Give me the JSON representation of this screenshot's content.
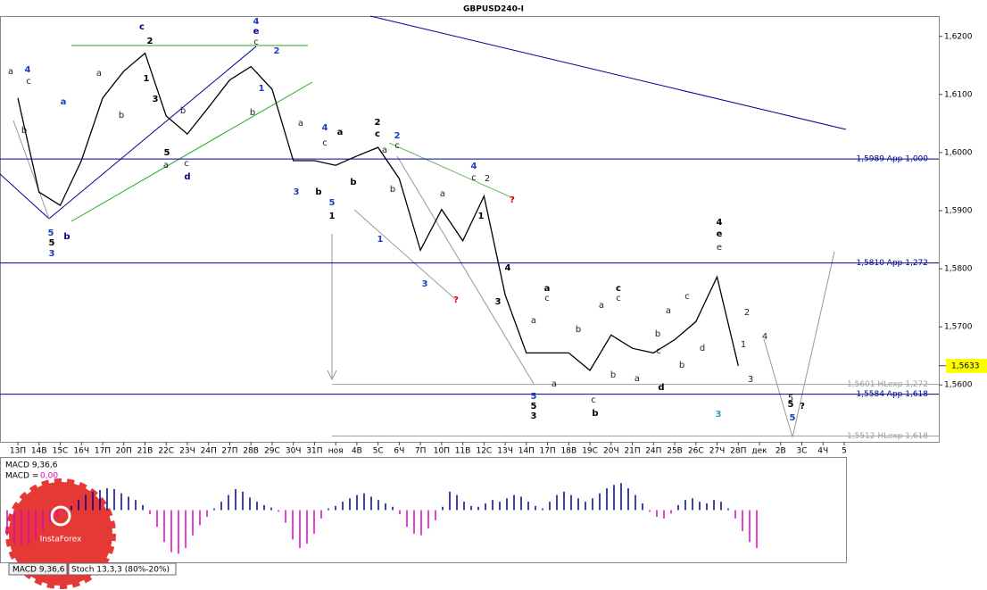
{
  "chart_data": {
    "type": "line",
    "title": "GBPUSD240-I",
    "categories": [
      "13П",
      "14В",
      "15С",
      "16Ч",
      "17П",
      "20П",
      "21В",
      "22С",
      "23Ч",
      "24П",
      "27П",
      "28В",
      "29С",
      "30Ч",
      "31П",
      "ноя",
      "4В",
      "5С",
      "6Ч",
      "7П",
      "10П",
      "11В",
      "12С",
      "13Ч",
      "14П",
      "17П",
      "18В",
      "19С",
      "20Ч",
      "21П",
      "24П",
      "25В",
      "26С",
      "27Ч",
      "28П",
      "дек",
      "2В",
      "3С",
      "4Ч",
      "5"
    ],
    "values": [
      1.6094,
      1.5932,
      1.5909,
      1.5986,
      1.6094,
      1.614,
      1.6171,
      1.6063,
      1.6032,
      1.6078,
      1.6125,
      1.6148,
      1.6109,
      1.5986,
      1.5986,
      1.5978,
      1.5994,
      1.6009,
      1.5955,
      1.5832,
      1.5902,
      1.5848,
      1.5925,
      1.5755,
      1.5655,
      1.5655,
      1.5655,
      1.5625,
      1.5686,
      1.5663,
      1.5655,
      1.5678,
      1.5709,
      1.5786,
      1.5633,
      null,
      null,
      null,
      null,
      null
    ],
    "color": "#000000",
    "ylim": [
      1.5502,
      1.6235
    ],
    "yticks": [
      {
        "value": 1.56,
        "label": "1,5600"
      },
      {
        "value": 1.57,
        "label": "1,5700"
      },
      {
        "value": 1.58,
        "label": "1,5800"
      },
      {
        "value": 1.59,
        "label": "1,5900"
      },
      {
        "value": 1.6,
        "label": "1,6000"
      },
      {
        "value": 1.61,
        "label": "1,6100"
      },
      {
        "value": 1.62,
        "label": "1,6200"
      }
    ],
    "last_price": {
      "value": 1.5633,
      "label": "1,5633"
    },
    "levels": [
      {
        "value": 1.5989,
        "label": "1,5989 App 1,000",
        "color": "#00008b"
      },
      {
        "value": 1.581,
        "label": "1,5810 App 1,272",
        "color": "#00008b"
      },
      {
        "value": 1.5601,
        "label": "1,5601 HLexp 1,272",
        "color": "#a0a0a0"
      },
      {
        "value": 1.5584,
        "label": "1,5584 App 1,618",
        "color": "#00008b"
      },
      {
        "value": 1.5512,
        "label": "1,5512 HLexp 1,618",
        "color": "#a0a0a0"
      }
    ],
    "annotations": [
      {
        "text": "c",
        "color": "#00008b"
      },
      {
        "text": "2",
        "color": "#000000"
      },
      {
        "text": "4",
        "color": "#1f3fbf"
      },
      {
        "text": "e",
        "color": "#00008b"
      },
      {
        "text": "c",
        "color": "#222222"
      },
      {
        "text": "2",
        "color": "#1f3fbf"
      },
      {
        "text": "1",
        "color": "#1f3fbf"
      },
      {
        "text": "b",
        "color": "#222222"
      },
      {
        "text": "a",
        "color": "#222222"
      },
      {
        "text": "4",
        "color": "#1f3fbf"
      },
      {
        "text": "c",
        "color": "#222222"
      },
      {
        "text": "a",
        "color": "#1f3fbf"
      },
      {
        "text": "b",
        "color": "#222222"
      },
      {
        "text": "5",
        "color": "#1f3fbf"
      },
      {
        "text": "5",
        "color": "#000000"
      },
      {
        "text": "3",
        "color": "#1f3fbf"
      },
      {
        "text": "b",
        "color": "#00008b"
      },
      {
        "text": "a",
        "color": "#222222"
      },
      {
        "text": "b",
        "color": "#222222"
      },
      {
        "text": "1",
        "color": "#000000"
      },
      {
        "text": "3",
        "color": "#000000"
      },
      {
        "text": "b",
        "color": "#222222"
      },
      {
        "text": "5",
        "color": "#000000"
      },
      {
        "text": "a",
        "color": "#222222"
      },
      {
        "text": "c",
        "color": "#222222"
      },
      {
        "text": "d",
        "color": "#00008b"
      },
      {
        "text": "a",
        "color": "#222222"
      },
      {
        "text": "4",
        "color": "#1f3fbf"
      },
      {
        "text": "c",
        "color": "#222222"
      },
      {
        "text": "3",
        "color": "#1f3fbf"
      },
      {
        "text": "b",
        "color": "#000000"
      },
      {
        "text": "5",
        "color": "#1f3fbf"
      },
      {
        "text": "1",
        "color": "#000000"
      },
      {
        "text": "a",
        "color": "#000000"
      },
      {
        "text": "b",
        "color": "#000000"
      },
      {
        "text": "2",
        "color": "#000000"
      },
      {
        "text": "c",
        "color": "#000000"
      },
      {
        "text": "a",
        "color": "#222222"
      },
      {
        "text": "2",
        "color": "#1f3fbf"
      },
      {
        "text": "c",
        "color": "#222222"
      },
      {
        "text": "b",
        "color": "#222222"
      },
      {
        "text": "1",
        "color": "#1f3fbf"
      },
      {
        "text": "3",
        "color": "#1f3fbf"
      },
      {
        "text": "?",
        "color": "#e00000"
      },
      {
        "text": "a",
        "color": "#222222"
      },
      {
        "text": "4",
        "color": "#1f3fbf"
      },
      {
        "text": "c",
        "color": "#222222"
      },
      {
        "text": "2",
        "color": "#222222"
      },
      {
        "text": "1",
        "color": "#000000"
      },
      {
        "text": "?",
        "color": "#e00000"
      },
      {
        "text": "4",
        "color": "#000000"
      },
      {
        "text": "3",
        "color": "#000000"
      },
      {
        "text": "a",
        "color": "#222222"
      },
      {
        "text": "5",
        "color": "#1f3fbf"
      },
      {
        "text": "5",
        "color": "#000000"
      },
      {
        "text": "3",
        "color": "#000000"
      },
      {
        "text": "a",
        "color": "#000000"
      },
      {
        "text": "c",
        "color": "#222222"
      },
      {
        "text": "a",
        "color": "#222222"
      },
      {
        "text": "b",
        "color": "#222222"
      },
      {
        "text": "c",
        "color": "#222222"
      },
      {
        "text": "b",
        "color": "#000000"
      },
      {
        "text": "a",
        "color": "#222222"
      },
      {
        "text": "c",
        "color": "#000000"
      },
      {
        "text": "c",
        "color": "#222222"
      },
      {
        "text": "b",
        "color": "#222222"
      },
      {
        "text": "a",
        "color": "#222222"
      },
      {
        "text": "d",
        "color": "#000000"
      },
      {
        "text": "a",
        "color": "#222222"
      },
      {
        "text": "b",
        "color": "#222222"
      },
      {
        "text": "c",
        "color": "#222222"
      },
      {
        "text": "b",
        "color": "#222222"
      },
      {
        "text": "c",
        "color": "#222222"
      },
      {
        "text": "d",
        "color": "#222222"
      },
      {
        "text": "4",
        "color": "#000000"
      },
      {
        "text": "e",
        "color": "#000000"
      },
      {
        "text": "e",
        "color": "#222222"
      },
      {
        "text": "2",
        "color": "#222222"
      },
      {
        "text": "1",
        "color": "#222222"
      },
      {
        "text": "3",
        "color": "#222222"
      },
      {
        "text": "4",
        "color": "#222222"
      },
      {
        "text": "5",
        "color": "#222222"
      },
      {
        "text": "5",
        "color": "#000000"
      },
      {
        "text": "5",
        "color": "#1f3fbf"
      },
      {
        "text": "?",
        "color": "#000000"
      },
      {
        "text": "3",
        "color": "#2aa0c0"
      }
    ],
    "macd": {
      "type": "bar",
      "label": "MACD 9,36,6",
      "current_prefix": "MACD =",
      "current": {
        "value": 0,
        "label": "0,00"
      },
      "ylim": [
        -60,
        60
      ],
      "positive_color": "#00008b",
      "negative_color": "#e000c0",
      "values": [
        -30,
        -40,
        -42,
        -40,
        -35,
        -25,
        -15,
        -8,
        -2,
        5,
        12,
        18,
        22,
        24,
        26,
        25,
        20,
        16,
        12,
        6,
        -5,
        -20,
        -38,
        -50,
        -52,
        -45,
        -30,
        -18,
        -8,
        2,
        10,
        18,
        25,
        22,
        15,
        10,
        6,
        3,
        -2,
        -15,
        -35,
        -45,
        -40,
        -28,
        -10,
        2,
        5,
        10,
        14,
        18,
        20,
        16,
        12,
        8,
        4,
        -5,
        -20,
        -28,
        -30,
        -22,
        -12,
        4,
        22,
        18,
        10,
        5,
        4,
        8,
        12,
        10,
        14,
        18,
        16,
        10,
        5,
        2,
        10,
        18,
        22,
        18,
        14,
        10,
        14,
        20,
        26,
        30,
        32,
        26,
        18,
        8,
        -2,
        -8,
        -10,
        -4,
        6,
        12,
        14,
        10,
        8,
        12,
        10,
        2,
        -10,
        -25,
        -38,
        -45
      ]
    },
    "tabs": [
      "MACD 9,36,6",
      "Stoch 13,3,3 (80%-20%)"
    ],
    "logo": "InstaForex"
  }
}
